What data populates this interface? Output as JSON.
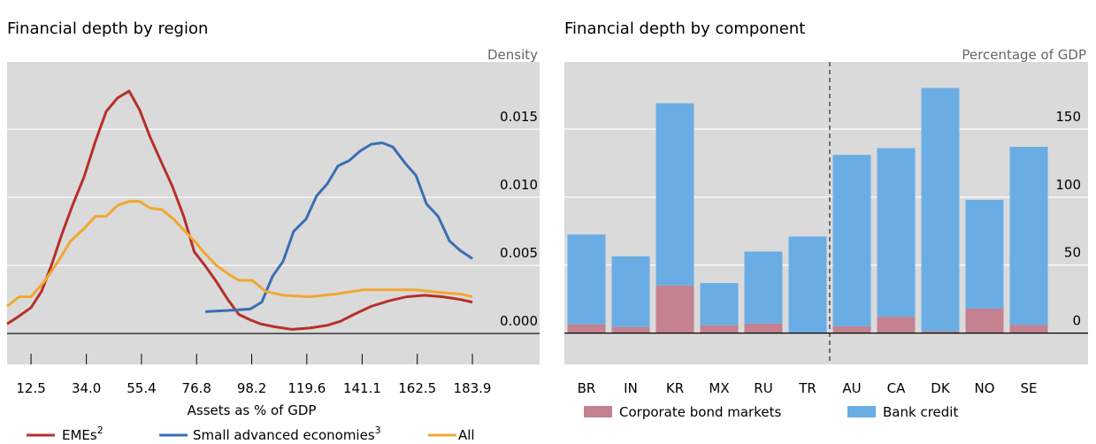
{
  "chart_data": [
    {
      "type": "line",
      "title": "Financial depth by region",
      "y_label": "Density",
      "x_label": "Assets as % of GDP",
      "xlim": [
        3.2,
        210
      ],
      "ylim": [
        -0.00227,
        0.01994
      ],
      "xticks": [
        12.5,
        {
          "value": 34,
          "label": "34.0"
        },
        55.4,
        76.8,
        98.2,
        119.6,
        141.1,
        162.5,
        183.9
      ],
      "yticks": [
        {
          "value": 0,
          "label": "0.000"
        },
        0.005,
        {
          "value": 0.01,
          "label": "0.010"
        },
        0.015
      ],
      "grid": true,
      "series": [
        {
          "name": "EMEs",
          "footnote": "2",
          "color": "#b5302a",
          "x": [
            3.2,
            7.3,
            12.5,
            16.6,
            20.4,
            24.5,
            28.6,
            33.1,
            37.5,
            41.7,
            46.1,
            50.6,
            54.7,
            58.8,
            63.3,
            67.4,
            71.8,
            75.9,
            80.4,
            84.5,
            88.9,
            93.2,
            97.6,
            101.7,
            106.9,
            113.8,
            120.7,
            127.6,
            132.7,
            137.9,
            144.7,
            151.6,
            158.5,
            165.3,
            172.2,
            179.1,
            183.9
          ],
          "values": [
            0.0007,
            0.0012,
            0.0019,
            0.0031,
            0.005,
            0.0073,
            0.0094,
            0.0115,
            0.0141,
            0.0163,
            0.0173,
            0.0178,
            0.0164,
            0.0144,
            0.0125,
            0.0108,
            0.0086,
            0.006,
            0.0049,
            0.0038,
            0.0025,
            0.0014,
            0.001,
            0.0007,
            0.0005,
            0.0003,
            0.0004,
            0.0006,
            0.0009,
            0.0014,
            0.002,
            0.0024,
            0.0027,
            0.0028,
            0.0027,
            0.0025,
            0.0023
          ]
        },
        {
          "name": "Small advanced economies",
          "footnote": "3",
          "color": "#3a6fb0",
          "x": [
            80.2,
            89.8,
            97.7,
            102.1,
            106.3,
            110.4,
            114.5,
            119.3,
            123.4,
            127.6,
            131.7,
            136.1,
            140.3,
            144.7,
            148.9,
            153.0,
            157.8,
            162.0,
            166.1,
            170.6,
            175.0,
            179.1,
            183.9
          ],
          "values": [
            0.0016,
            0.0017,
            0.0018,
            0.0023,
            0.0042,
            0.0053,
            0.0075,
            0.0084,
            0.0101,
            0.011,
            0.0123,
            0.0127,
            0.0134,
            0.0139,
            0.014,
            0.0137,
            0.0125,
            0.0116,
            0.0095,
            0.0086,
            0.0068,
            0.0061,
            0.0055
          ]
        },
        {
          "name": "All",
          "color": "#f0a830",
          "x": [
            3.2,
            8.0,
            12.5,
            17.6,
            23.1,
            27.9,
            33.1,
            37.5,
            41.7,
            46.1,
            50.6,
            54.7,
            58.8,
            63.3,
            67.8,
            71.8,
            75.9,
            80.4,
            84.5,
            88.9,
            93.2,
            98.4,
            103.5,
            110.4,
            120.7,
            131.0,
            141.3,
            151.6,
            161.9,
            172.2,
            179.1,
            183.9
          ],
          "values": [
            0.002,
            0.0027,
            0.0027,
            0.0038,
            0.0053,
            0.0068,
            0.0077,
            0.0086,
            0.0086,
            0.0094,
            0.0097,
            0.0097,
            0.0092,
            0.0091,
            0.0084,
            0.0076,
            0.0068,
            0.0058,
            0.005,
            0.0044,
            0.0039,
            0.0039,
            0.0031,
            0.0028,
            0.0027,
            0.0029,
            0.0032,
            0.0032,
            0.0032,
            0.003,
            0.0029,
            0.0027
          ]
        }
      ]
    },
    {
      "type": "bar",
      "stacked": true,
      "title": "Financial depth by component",
      "y_label": "Percentage of GDP",
      "categories": [
        "BR",
        "IN",
        "KR",
        "MX",
        "RU",
        "TR",
        "AU",
        "CA",
        "DK",
        "NO",
        "SE"
      ],
      "ylim": [
        -23,
        199.4
      ],
      "yticks": [
        0,
        50,
        100,
        150
      ],
      "grid": true,
      "series": [
        {
          "name": "Corporate bond markets",
          "color": "#c48190",
          "values": [
            6.5,
            4.5,
            35,
            5.8,
            7,
            0,
            5,
            12,
            1.3,
            18,
            6
          ]
        },
        {
          "name": "Bank credit",
          "color": "#6aade4",
          "values": [
            66,
            52,
            134,
            31,
            53,
            71,
            126,
            124,
            179,
            80,
            131
          ]
        }
      ]
    }
  ]
}
